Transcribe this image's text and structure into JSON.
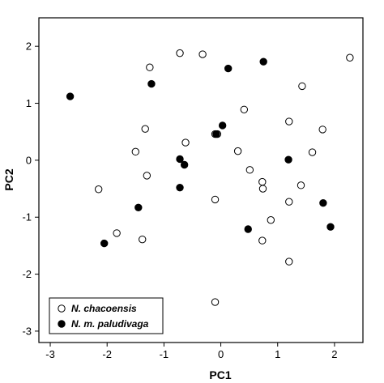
{
  "chart_data": {
    "type": "scatter",
    "xlabel": "PC1",
    "ylabel": "PC2",
    "xlim": [
      -3.2,
      2.5
    ],
    "ylim": [
      -3.2,
      2.5
    ],
    "xticks": [
      -3,
      -2,
      -1,
      0,
      1,
      2
    ],
    "yticks": [
      -3,
      -2,
      -1,
      0,
      1,
      2
    ],
    "grid": false,
    "legend_position": "bottom-left",
    "series": [
      {
        "name": "N. chacoensis",
        "marker": "open-circle",
        "color": "#000000",
        "points": [
          [
            -0.72,
            1.88
          ],
          [
            -0.32,
            1.86
          ],
          [
            -1.25,
            1.63
          ],
          [
            2.27,
            1.8
          ],
          [
            1.43,
            1.3
          ],
          [
            0.41,
            0.89
          ],
          [
            1.2,
            0.68
          ],
          [
            -1.33,
            0.55
          ],
          [
            1.79,
            0.54
          ],
          [
            -0.62,
            0.31
          ],
          [
            -1.5,
            0.15
          ],
          [
            0.3,
            0.16
          ],
          [
            1.61,
            0.14
          ],
          [
            -0.1,
            0.46
          ],
          [
            -0.06,
            0.46
          ],
          [
            -1.3,
            -0.27
          ],
          [
            0.51,
            -0.17
          ],
          [
            0.73,
            -0.38
          ],
          [
            0.74,
            -0.5
          ],
          [
            1.41,
            -0.44
          ],
          [
            -2.15,
            -0.51
          ],
          [
            -0.1,
            -0.69
          ],
          [
            1.2,
            -0.73
          ],
          [
            0.88,
            -1.05
          ],
          [
            -1.83,
            -1.28
          ],
          [
            -1.38,
            -1.39
          ],
          [
            0.73,
            -1.41
          ],
          [
            1.2,
            -1.78
          ],
          [
            -0.1,
            -2.49
          ]
        ]
      },
      {
        "name": "N. m. paludivaga",
        "marker": "filled-circle",
        "color": "#000000",
        "points": [
          [
            -2.65,
            1.12
          ],
          [
            0.75,
            1.73
          ],
          [
            0.13,
            1.61
          ],
          [
            -1.22,
            1.34
          ],
          [
            0.03,
            0.61
          ],
          [
            -0.08,
            0.46
          ],
          [
            -0.72,
            0.02
          ],
          [
            -0.64,
            -0.08
          ],
          [
            1.19,
            0.01
          ],
          [
            -0.72,
            -0.48
          ],
          [
            -1.45,
            -0.83
          ],
          [
            1.8,
            -0.75
          ],
          [
            0.48,
            -1.21
          ],
          [
            1.93,
            -1.17
          ],
          [
            -2.05,
            -1.46
          ]
        ]
      }
    ]
  }
}
